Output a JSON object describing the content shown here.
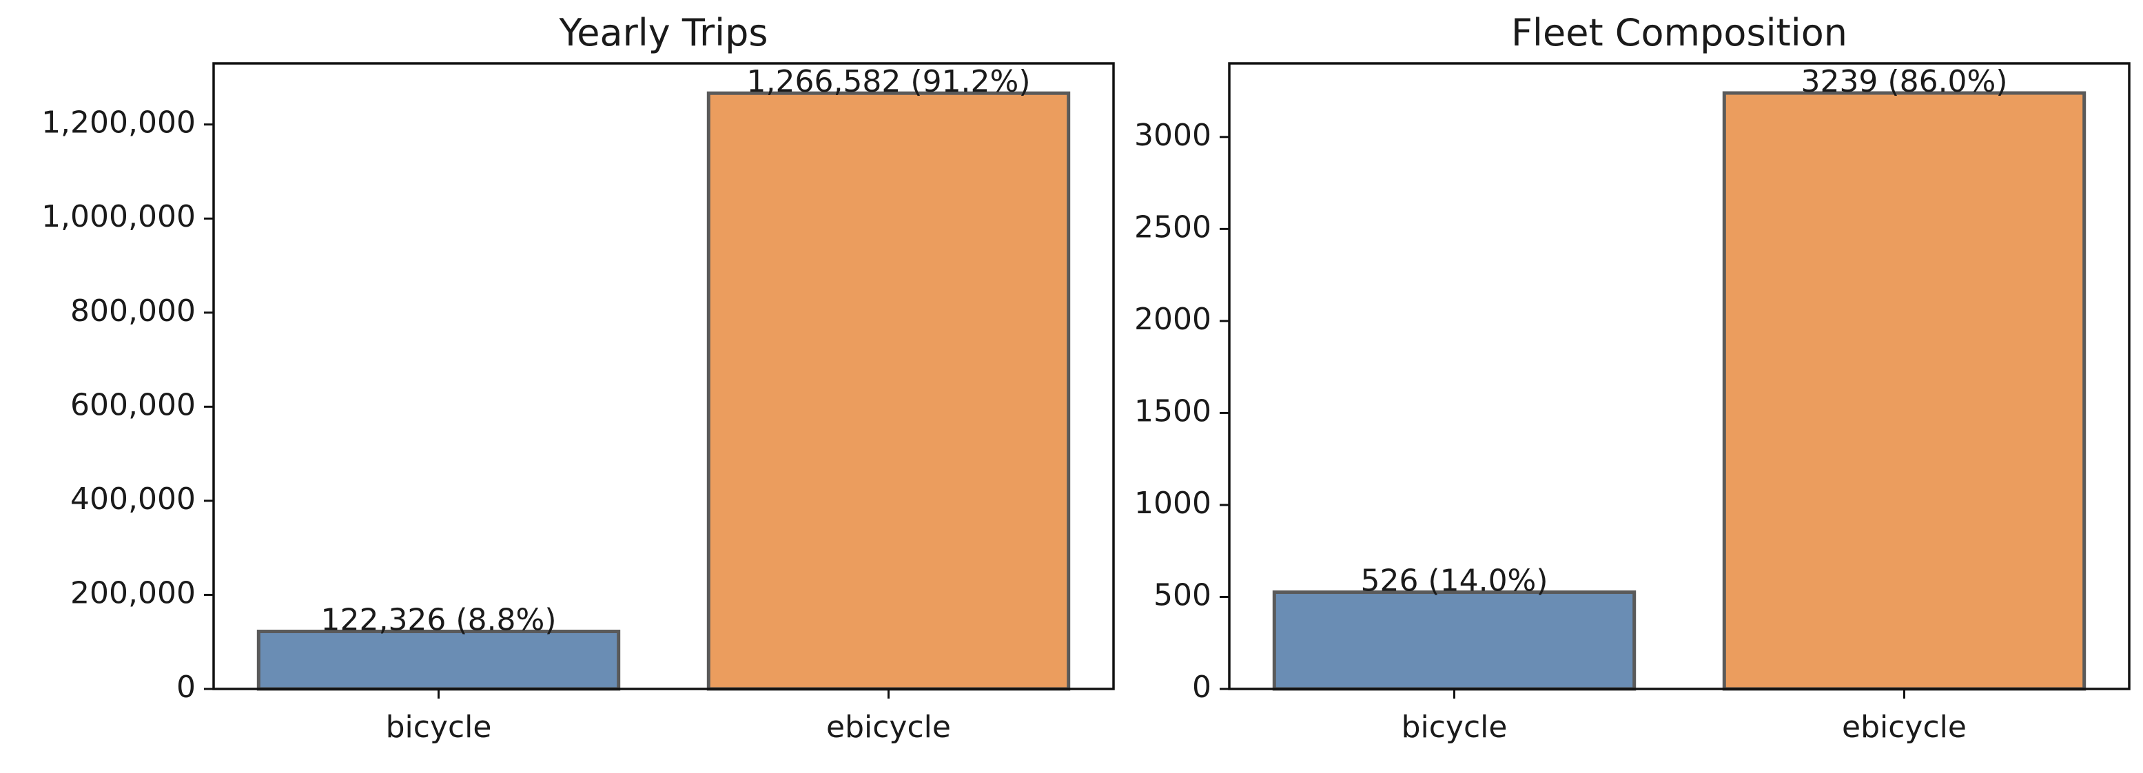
{
  "chart_data": [
    {
      "type": "bar",
      "title": "Yearly Trips",
      "xlabel": "",
      "ylabel": "",
      "categories": [
        "bicycle",
        "ebicycle"
      ],
      "values": [
        122326,
        1266582
      ],
      "data_labels": [
        "122,326 (8.8%)",
        "1,266,582 (91.2%)"
      ],
      "ylim": [
        0,
        1329911
      ],
      "yticks": [
        0,
        200000,
        400000,
        600000,
        800000,
        1000000,
        1200000
      ],
      "ytick_labels": [
        "0",
        "200,000",
        "400,000",
        "600,000",
        "800,000",
        "1,000,000",
        "1,200,000"
      ],
      "colors": [
        "#6a8db4",
        "#eb9d5e"
      ],
      "edge_color": "#5a5a5a",
      "grid": false,
      "legend": "none"
    },
    {
      "type": "bar",
      "title": "Fleet Composition",
      "xlabel": "",
      "ylabel": "",
      "categories": [
        "bicycle",
        "ebicycle"
      ],
      "values": [
        526,
        3239
      ],
      "data_labels": [
        "526 (14.0%)",
        "3239 (86.0%)"
      ],
      "ylim": [
        0,
        3400
      ],
      "yticks": [
        0,
        500,
        1000,
        1500,
        2000,
        2500,
        3000
      ],
      "ytick_labels": [
        "0",
        "500",
        "1000",
        "1500",
        "2000",
        "2500",
        "3000"
      ],
      "colors": [
        "#6a8db4",
        "#eb9d5e"
      ],
      "edge_color": "#5a5a5a",
      "grid": false,
      "legend": "none"
    }
  ]
}
